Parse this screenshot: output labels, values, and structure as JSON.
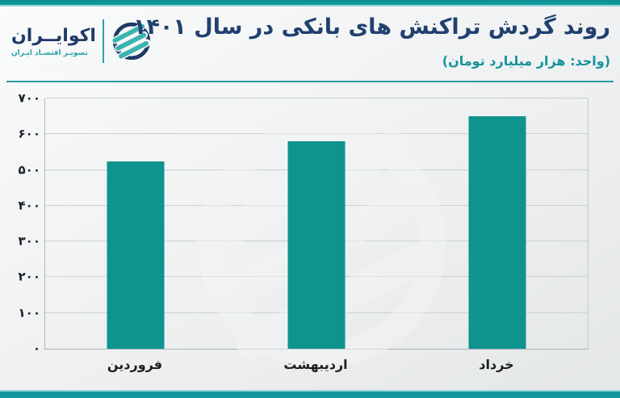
{
  "header": {
    "title": "روند گردش تراکنش های بانکی در سال ۱۴۰۱",
    "subtitle": "(واحد: هزار میلیارد تومان)",
    "logo": {
      "name": "اکوایــران",
      "tagline": "تصویـر اقتصـاد ایـران"
    }
  },
  "chart_data": {
    "type": "bar",
    "title": "روند گردش تراکنش های بانکی در سال ۱۴۰۱",
    "unit_label": "(واحد: هزار میلیارد تومان)",
    "categories": [
      "فروردین",
      "اردیبهشت",
      "خرداد"
    ],
    "values": [
      525,
      580,
      650
    ],
    "ylim": [
      0,
      700
    ],
    "ytick_step": 100,
    "ytick_labels": [
      "۰",
      "۱۰۰",
      "۲۰۰",
      "۳۰۰",
      "۴۰۰",
      "۵۰۰",
      "۶۰۰",
      "۷۰۰"
    ],
    "grid": true,
    "legend": "none",
    "bar_color": "#0e938f"
  },
  "colors": {
    "accent_teal": "#12989d",
    "accent_teal_light": "#94d5d8",
    "navy": "#21406f",
    "subtitle_teal": "#17939b",
    "bar_fill": "#0e938f",
    "gridline": "#ced2d3",
    "background": "#eceeef"
  }
}
